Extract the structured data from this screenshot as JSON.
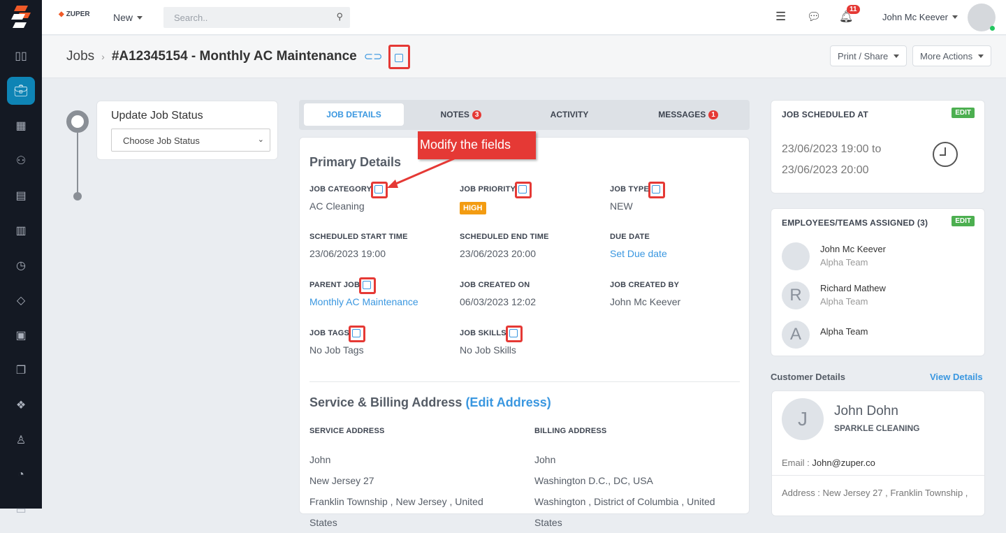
{
  "brand": {
    "name": "ZUPER",
    "colors": {
      "accent": "#3a97e0",
      "sidebar": "#141923",
      "annotation": "#e53935",
      "active_nav": "#0e84b5"
    }
  },
  "topbar": {
    "new_label": "New",
    "search_placeholder": "Search..",
    "notification_count": "11",
    "user_name": "John Mc Keever"
  },
  "sidebar": {
    "items": [
      "chart-icon",
      "briefcase-icon",
      "calendar-icon",
      "user-search-icon",
      "building-icon",
      "map-icon",
      "clock-icon",
      "tag-icon",
      "calculator-icon",
      "copy-icon",
      "boxes-icon",
      "person-icon",
      "pie-icon",
      "monitor-icon"
    ],
    "active": "briefcase-icon"
  },
  "header": {
    "breadcrumb_root": "Jobs",
    "title": "#A12345154 - Monthly AC Maintenance",
    "print_label": "Print / Share",
    "more_label": "More Actions"
  },
  "status": {
    "title": "Update Job Status",
    "select_value": "Choose Job Status"
  },
  "tabs": [
    {
      "label": "JOB DETAILS",
      "active": true
    },
    {
      "label": "NOTES",
      "badge": "3"
    },
    {
      "label": "ACTIVITY"
    },
    {
      "label": "MESSAGES",
      "badge": "1"
    }
  ],
  "annotation": {
    "callout": "Modify the fields"
  },
  "primary": {
    "title": "Primary Details",
    "fields": [
      {
        "label": "JOB CATEGORY",
        "value": "AC Cleaning"
      },
      {
        "label": "JOB PRIORITY",
        "value": "HIGH"
      },
      {
        "label": "JOB TYPE",
        "value": "NEW"
      },
      {
        "label": "SCHEDULED START TIME",
        "value": "23/06/2023 19:00"
      },
      {
        "label": "SCHEDULED END TIME",
        "value": "23/06/2023 20:00"
      },
      {
        "label": "DUE DATE",
        "value": "Set Due date"
      },
      {
        "label": "PARENT JOB",
        "value": "Monthly AC Maintenance"
      },
      {
        "label": "JOB CREATED ON",
        "value": "06/03/2023 12:02"
      },
      {
        "label": "JOB CREATED BY",
        "value": "John Mc Keever"
      },
      {
        "label": "JOB TAGS",
        "value": "No Job Tags"
      },
      {
        "label": "JOB SKILLS",
        "value": "No Job Skills"
      }
    ]
  },
  "address": {
    "title": "Service & Billing Address",
    "edit_label": "(Edit Address)",
    "service": {
      "label": "SERVICE ADDRESS",
      "lines": [
        "John",
        "New Jersey 27",
        "Franklin Township , New Jersey , United States"
      ]
    },
    "billing": {
      "label": "BILLING ADDRESS",
      "lines": [
        "John",
        "Washington D.C., DC, USA",
        "Washington , District of Columbia , United States"
      ]
    }
  },
  "schedule": {
    "title": "JOB SCHEDULED AT",
    "edit": "EDIT",
    "from": "23/06/2023 19:00 to",
    "to": "23/06/2023 20:00"
  },
  "employees": {
    "title": "EMPLOYEES/TEAMS ASSIGNED (3)",
    "edit": "EDIT",
    "list": [
      {
        "name": "John Mc Keever",
        "team": "Alpha Team",
        "initial": ""
      },
      {
        "name": "Richard Mathew",
        "team": "Alpha Team",
        "initial": "R"
      },
      {
        "name": "Alpha Team",
        "team": "",
        "initial": "A"
      }
    ]
  },
  "customer": {
    "title": "Customer Details",
    "view": "View Details",
    "initial": "J",
    "name": "John Dohn",
    "company": "SPARKLE CLEANING",
    "email_label": "Email :",
    "email": "John@zuper.co",
    "address_label": "Address :",
    "address": "New Jersey 27 , Franklin Township ,"
  }
}
